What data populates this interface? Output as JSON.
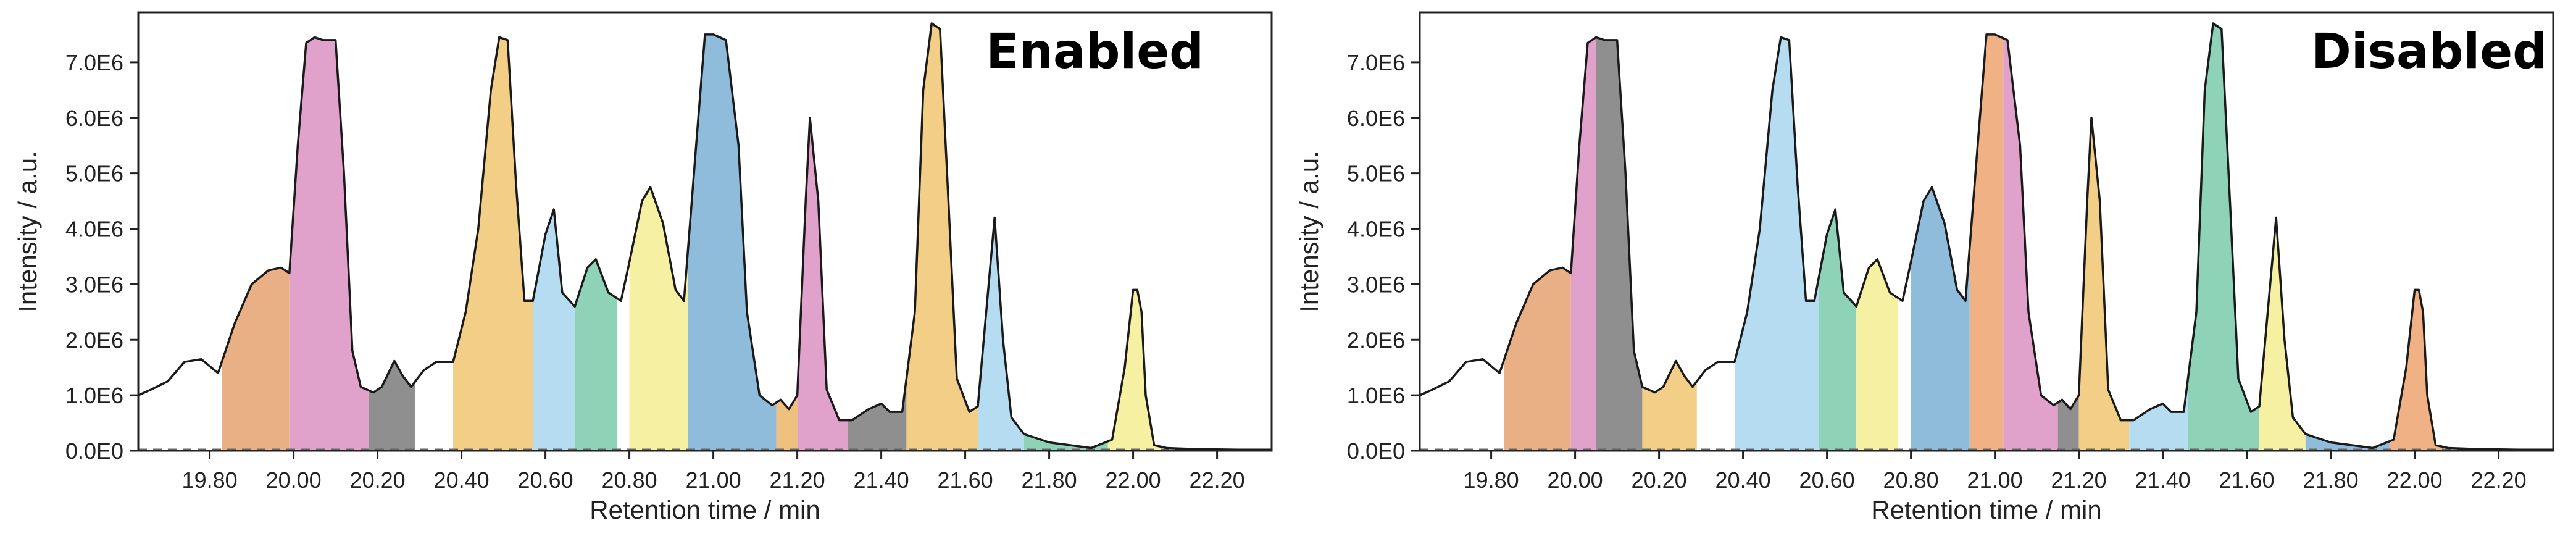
{
  "chart_data": [
    {
      "type": "area",
      "title": "Enabled",
      "xlabel": "Retention time / min",
      "ylabel": "Intensity / a.u.",
      "xlim": [
        19.63,
        22.33
      ],
      "ylim": [
        0,
        7.9
      ],
      "y_unit_multiplier": 1000000,
      "x_ticks": [
        19.8,
        20.0,
        20.2,
        20.4,
        20.6,
        20.8,
        21.0,
        21.2,
        21.4,
        21.6,
        21.8,
        22.0,
        22.2
      ],
      "x_tick_labels": [
        "19.80",
        "20.00",
        "20.20",
        "20.40",
        "20.60",
        "20.80",
        "21.00",
        "21.20",
        "21.40",
        "21.60",
        "21.80",
        "22.00",
        "22.20"
      ],
      "y_ticks": [
        0,
        1,
        2,
        3,
        4,
        5,
        6,
        7
      ],
      "y_tick_labels": [
        "0.0E0",
        "1.0E6",
        "2.0E6",
        "3.0E6",
        "4.0E6",
        "5.0E6",
        "6.0E6",
        "7.0E6"
      ],
      "baseline_dashed": true,
      "trace": {
        "x": [
          19.63,
          19.66,
          19.7,
          19.74,
          19.78,
          19.82,
          19.86,
          19.9,
          19.94,
          19.97,
          19.99,
          20.01,
          20.03,
          20.05,
          20.07,
          20.1,
          20.12,
          20.14,
          20.16,
          20.19,
          20.21,
          20.24,
          20.26,
          20.28,
          20.31,
          20.34,
          20.38,
          20.41,
          20.44,
          20.47,
          20.49,
          20.51,
          20.53,
          20.55,
          20.57,
          20.6,
          20.62,
          20.64,
          20.67,
          20.7,
          20.72,
          20.75,
          20.78,
          20.8,
          20.83,
          20.85,
          20.88,
          20.91,
          20.93,
          20.96,
          20.98,
          21.0,
          21.03,
          21.06,
          21.08,
          21.11,
          21.14,
          21.16,
          21.18,
          21.2,
          21.22,
          21.23,
          21.25,
          21.27,
          21.3,
          21.33,
          21.37,
          21.4,
          21.42,
          21.45,
          21.48,
          21.5,
          21.52,
          21.54,
          21.56,
          21.58,
          21.61,
          21.63,
          21.65,
          21.67,
          21.69,
          21.71,
          21.74,
          21.8,
          21.9,
          21.95,
          21.98,
          22.0,
          22.01,
          22.02,
          22.03,
          22.05,
          22.08,
          22.15,
          22.25,
          22.33
        ],
        "y": [
          1.0,
          1.1,
          1.25,
          1.6,
          1.65,
          1.4,
          2.3,
          3.0,
          3.25,
          3.3,
          3.2,
          5.5,
          7.35,
          7.45,
          7.4,
          7.4,
          5.0,
          1.8,
          1.15,
          1.05,
          1.15,
          1.62,
          1.35,
          1.15,
          1.45,
          1.6,
          1.6,
          2.5,
          4.0,
          6.5,
          7.45,
          7.4,
          4.8,
          2.7,
          2.7,
          3.9,
          4.35,
          2.85,
          2.6,
          3.3,
          3.45,
          2.85,
          2.7,
          3.4,
          4.5,
          4.75,
          4.1,
          2.9,
          2.7,
          5.6,
          7.5,
          7.5,
          7.4,
          5.5,
          2.5,
          1.0,
          0.82,
          0.92,
          0.75,
          1.0,
          4.5,
          6.0,
          4.5,
          1.1,
          0.55,
          0.55,
          0.75,
          0.85,
          0.7,
          0.7,
          2.5,
          6.5,
          7.7,
          7.6,
          4.5,
          1.3,
          0.7,
          0.8,
          2.5,
          4.2,
          2.0,
          0.6,
          0.3,
          0.15,
          0.05,
          0.2,
          1.5,
          2.9,
          2.9,
          2.5,
          1.0,
          0.1,
          0.05,
          0.03,
          0.02,
          0.02
        ]
      },
      "segments": [
        {
          "x0": 19.83,
          "x1": 19.99,
          "color": "#e9b086"
        },
        {
          "x0": 19.99,
          "x1": 20.18,
          "color": "#e0a2cb"
        },
        {
          "x0": 20.18,
          "x1": 20.29,
          "color": "#8f8f8f"
        },
        {
          "x0": 20.38,
          "x1": 20.57,
          "color": "#f2ce86"
        },
        {
          "x0": 20.57,
          "x1": 20.67,
          "color": "#b6dcf2"
        },
        {
          "x0": 20.67,
          "x1": 20.77,
          "color": "#8ed2b8"
        },
        {
          "x0": 20.77,
          "x1": 20.8,
          "color": "#ffffff"
        },
        {
          "x0": 20.8,
          "x1": 20.94,
          "color": "#f6f0a2"
        },
        {
          "x0": 20.94,
          "x1": 21.15,
          "color": "#8fbcdb"
        },
        {
          "x0": 21.15,
          "x1": 21.2,
          "color": "#f0c07e"
        },
        {
          "x0": 21.2,
          "x1": 21.32,
          "color": "#e0a2cb"
        },
        {
          "x0": 21.32,
          "x1": 21.46,
          "color": "#8f8f8f"
        },
        {
          "x0": 21.46,
          "x1": 21.63,
          "color": "#f2ce86"
        },
        {
          "x0": 21.63,
          "x1": 21.74,
          "color": "#b6dcf2"
        },
        {
          "x0": 21.74,
          "x1": 21.94,
          "color": "#8ed2b8"
        },
        {
          "x0": 21.94,
          "x1": 22.07,
          "color": "#f6f0a2"
        }
      ]
    },
    {
      "type": "area",
      "title": "Disabled",
      "xlabel": "Retention time / min",
      "ylabel": "Intensity / a.u.",
      "xlim": [
        19.63,
        22.33
      ],
      "ylim": [
        0,
        7.9
      ],
      "y_unit_multiplier": 1000000,
      "x_ticks": [
        19.8,
        20.0,
        20.2,
        20.4,
        20.6,
        20.8,
        21.0,
        21.2,
        21.4,
        21.6,
        21.8,
        22.0,
        22.2
      ],
      "x_tick_labels": [
        "19.80",
        "20.00",
        "20.20",
        "20.40",
        "20.60",
        "20.80",
        "21.00",
        "21.20",
        "21.40",
        "21.60",
        "21.80",
        "22.00",
        "22.20"
      ],
      "y_ticks": [
        0,
        1,
        2,
        3,
        4,
        5,
        6,
        7
      ],
      "y_tick_labels": [
        "0.0E0",
        "1.0E6",
        "2.0E6",
        "3.0E6",
        "4.0E6",
        "5.0E6",
        "6.0E6",
        "7.0E6"
      ],
      "baseline_dashed": true,
      "trace": {
        "x": [
          19.63,
          19.66,
          19.7,
          19.74,
          19.78,
          19.82,
          19.86,
          19.9,
          19.94,
          19.97,
          19.99,
          20.01,
          20.03,
          20.05,
          20.07,
          20.1,
          20.12,
          20.14,
          20.16,
          20.19,
          20.21,
          20.24,
          20.26,
          20.28,
          20.31,
          20.34,
          20.38,
          20.41,
          20.44,
          20.47,
          20.49,
          20.51,
          20.53,
          20.55,
          20.57,
          20.6,
          20.62,
          20.64,
          20.67,
          20.7,
          20.72,
          20.75,
          20.78,
          20.8,
          20.83,
          20.85,
          20.88,
          20.91,
          20.93,
          20.96,
          20.98,
          21.0,
          21.03,
          21.06,
          21.08,
          21.11,
          21.14,
          21.16,
          21.18,
          21.2,
          21.22,
          21.23,
          21.25,
          21.27,
          21.3,
          21.33,
          21.37,
          21.4,
          21.42,
          21.45,
          21.48,
          21.5,
          21.52,
          21.54,
          21.56,
          21.58,
          21.61,
          21.63,
          21.65,
          21.67,
          21.69,
          21.71,
          21.74,
          21.8,
          21.9,
          21.95,
          21.98,
          22.0,
          22.01,
          22.02,
          22.03,
          22.05,
          22.08,
          22.15,
          22.25,
          22.33
        ],
        "y": [
          1.0,
          1.1,
          1.25,
          1.6,
          1.65,
          1.4,
          2.3,
          3.0,
          3.25,
          3.3,
          3.2,
          5.5,
          7.35,
          7.45,
          7.4,
          7.4,
          5.0,
          1.8,
          1.15,
          1.05,
          1.15,
          1.62,
          1.35,
          1.15,
          1.45,
          1.6,
          1.6,
          2.5,
          4.0,
          6.5,
          7.45,
          7.4,
          4.8,
          2.7,
          2.7,
          3.9,
          4.35,
          2.85,
          2.6,
          3.3,
          3.45,
          2.85,
          2.7,
          3.4,
          4.5,
          4.75,
          4.1,
          2.9,
          2.7,
          5.6,
          7.5,
          7.5,
          7.4,
          5.5,
          2.5,
          1.0,
          0.82,
          0.92,
          0.75,
          1.0,
          4.5,
          6.0,
          4.5,
          1.1,
          0.55,
          0.55,
          0.75,
          0.85,
          0.7,
          0.7,
          2.5,
          6.5,
          7.7,
          7.6,
          4.5,
          1.3,
          0.7,
          0.8,
          2.5,
          4.2,
          2.0,
          0.6,
          0.3,
          0.15,
          0.05,
          0.2,
          1.5,
          2.9,
          2.9,
          2.5,
          1.0,
          0.1,
          0.05,
          0.03,
          0.02,
          0.02
        ]
      },
      "segments": [
        {
          "x0": 19.83,
          "x1": 19.99,
          "color": "#e9b086"
        },
        {
          "x0": 19.99,
          "x1": 20.05,
          "color": "#e0a2cb"
        },
        {
          "x0": 20.05,
          "x1": 20.16,
          "color": "#8f8f8f"
        },
        {
          "x0": 20.16,
          "x1": 20.29,
          "color": "#f2ce86"
        },
        {
          "x0": 20.38,
          "x1": 20.58,
          "color": "#b6dcf2"
        },
        {
          "x0": 20.58,
          "x1": 20.67,
          "color": "#8ed2b8"
        },
        {
          "x0": 20.67,
          "x1": 20.77,
          "color": "#f6f0a2"
        },
        {
          "x0": 20.77,
          "x1": 20.8,
          "color": "#ffffff"
        },
        {
          "x0": 20.8,
          "x1": 20.94,
          "color": "#8fbcdb"
        },
        {
          "x0": 20.94,
          "x1": 21.02,
          "color": "#f0b184"
        },
        {
          "x0": 21.02,
          "x1": 21.15,
          "color": "#e0a2cb"
        },
        {
          "x0": 21.15,
          "x1": 21.2,
          "color": "#8f8f8f"
        },
        {
          "x0": 21.2,
          "x1": 21.32,
          "color": "#f2ce86"
        },
        {
          "x0": 21.32,
          "x1": 21.46,
          "color": "#b6dcf2"
        },
        {
          "x0": 21.46,
          "x1": 21.63,
          "color": "#8ed2b8"
        },
        {
          "x0": 21.63,
          "x1": 21.74,
          "color": "#f6f0a2"
        },
        {
          "x0": 21.74,
          "x1": 21.94,
          "color": "#8fbcdb"
        },
        {
          "x0": 21.94,
          "x1": 22.07,
          "color": "#f0b184"
        }
      ]
    }
  ]
}
